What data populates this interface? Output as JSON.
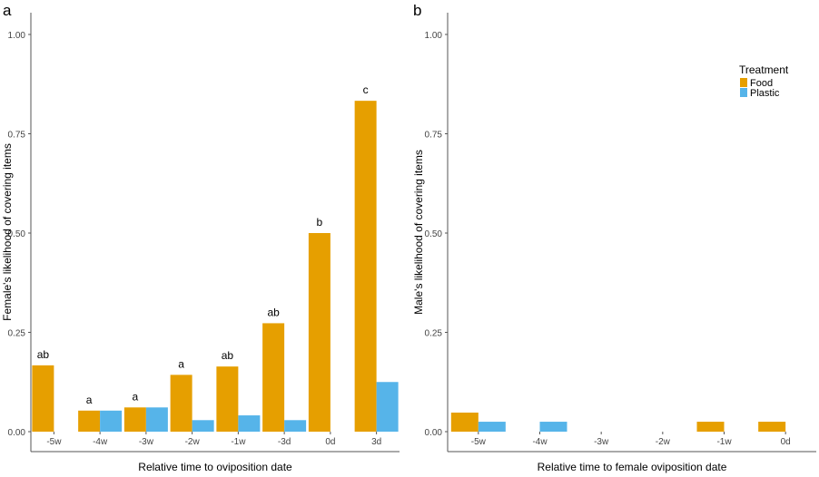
{
  "chart_data": [
    {
      "type": "bar",
      "panel_label": "a",
      "title": "",
      "xlabel": "Relative time to oviposition date",
      "ylabel": "Female's likelihood of covering items",
      "categories": [
        "-5w",
        "-4w",
        "-3w",
        "-2w",
        "-1w",
        "-3d",
        "0d",
        "3d"
      ],
      "ylim": [
        0,
        1.0
      ],
      "yticks": [
        0.0,
        0.25,
        0.5,
        0.75,
        1.0
      ],
      "ytick_labels": [
        "0.00",
        "0.25",
        "0.50",
        "0.75",
        "1.00"
      ],
      "grid": false,
      "series": [
        {
          "name": "Food",
          "color": "#E69F00",
          "values": [
            0.167,
            0.053,
            0.061,
            0.143,
            0.164,
            0.273,
            0.5,
            0.833
          ]
        },
        {
          "name": "Plastic",
          "color": "#56B4E9",
          "values": [
            0,
            0.053,
            0.061,
            0.029,
            0.041,
            0.029,
            0,
            0.125
          ]
        }
      ],
      "annotations": [
        "ab",
        "a",
        "a",
        "a",
        "ab",
        "ab",
        "b",
        "c"
      ]
    },
    {
      "type": "bar",
      "panel_label": "b",
      "title": "",
      "xlabel": "Relative time to female oviposition date",
      "ylabel": "Male's likelihood of covering items",
      "categories": [
        "-5w",
        "-4w",
        "-3w",
        "-2w",
        "-1w",
        "0d"
      ],
      "ylim": [
        0,
        1.0
      ],
      "yticks": [
        0.0,
        0.25,
        0.5,
        0.75,
        1.0
      ],
      "ytick_labels": [
        "0.00",
        "0.25",
        "0.50",
        "0.75",
        "1.00"
      ],
      "grid": false,
      "series": [
        {
          "name": "Food",
          "color": "#E69F00",
          "values": [
            0.048,
            0,
            0,
            0,
            0.025,
            0.025
          ]
        },
        {
          "name": "Plastic",
          "color": "#56B4E9",
          "values": [
            0.025,
            0.025,
            0,
            0,
            0,
            0
          ]
        }
      ],
      "legend": {
        "title": "Treatment",
        "entries": [
          "Food",
          "Plastic"
        ],
        "placement": "top-right"
      }
    }
  ]
}
